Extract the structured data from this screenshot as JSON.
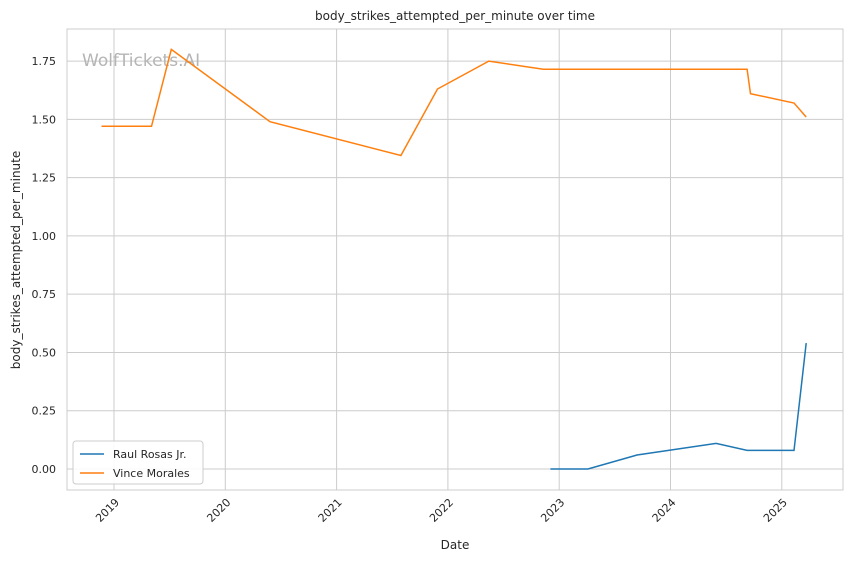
{
  "chart_data": {
    "type": "line",
    "title": "body_strikes_attempted_per_minute over time",
    "xlabel": "Date",
    "ylabel": "body_strikes_attempted_per_minute",
    "watermark": "WolfTickets.AI",
    "x_ticks": [
      "2019",
      "2020",
      "2021",
      "2022",
      "2023",
      "2024",
      "2025"
    ],
    "y_ticks": [
      "0.00",
      "0.25",
      "0.50",
      "0.75",
      "1.00",
      "1.25",
      "1.50",
      "1.75"
    ],
    "ylim": [
      -0.09,
      1.88
    ],
    "grid": true,
    "legend_position": "bottom-left",
    "series": [
      {
        "name": "Raul Rosas Jr.",
        "color": "#1f77b4",
        "x": [
          "2022-12-03",
          "2023-04-05",
          "2023-09-13",
          "2024-05-30",
          "2024-09-09",
          "2025-02-10",
          "2025-03-22"
        ],
        "y": [
          0.0,
          0.0,
          0.06,
          0.11,
          0.08,
          0.08,
          0.54
        ]
      },
      {
        "name": "Vince Morales",
        "color": "#ff7f0e",
        "x": [
          "2018-11-21",
          "2019-05-04",
          "2019-07-08",
          "2020-05-27",
          "2021-07-31",
          "2021-11-28",
          "2022-05-15",
          "2022-11-10",
          "2024-09-09",
          "2024-09-20",
          "2025-02-10",
          "2025-03-22"
        ],
        "y": [
          1.47,
          1.47,
          1.8,
          1.49,
          1.345,
          1.63,
          1.75,
          1.715,
          1.715,
          1.61,
          1.57,
          1.51
        ]
      }
    ]
  }
}
